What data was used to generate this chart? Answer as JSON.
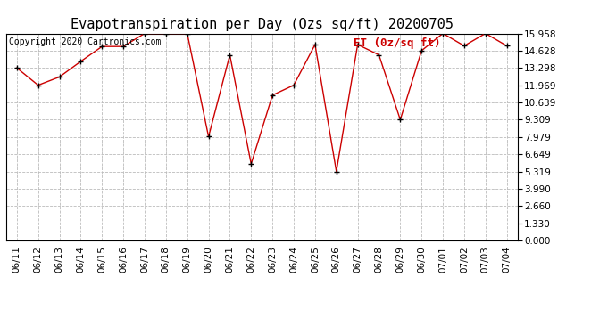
{
  "title": "Evapotranspiration per Day (Ozs sq/ft) 20200705",
  "copyright": "Copyright 2020 Cartronics.com",
  "legend_label": "ET (0z/sq ft)",
  "dates": [
    "06/11",
    "06/12",
    "06/13",
    "06/14",
    "06/15",
    "06/16",
    "06/17",
    "06/18",
    "06/19",
    "06/20",
    "06/21",
    "06/22",
    "06/23",
    "06/24",
    "06/25",
    "06/26",
    "06/27",
    "06/28",
    "06/29",
    "06/30",
    "07/01",
    "07/02",
    "07/03",
    "07/04"
  ],
  "values": [
    13.3,
    11.969,
    12.6,
    13.8,
    14.95,
    14.95,
    15.958,
    15.958,
    15.958,
    8.0,
    14.3,
    5.9,
    11.2,
    11.969,
    15.1,
    5.319,
    15.1,
    14.3,
    9.309,
    14.628,
    15.958,
    15.0,
    15.958,
    15.0
  ],
  "yticks": [
    0.0,
    1.33,
    2.66,
    3.99,
    5.319,
    6.649,
    7.979,
    9.309,
    10.639,
    11.969,
    13.298,
    14.628,
    15.958
  ],
  "ylim": [
    0,
    15.958
  ],
  "line_color": "#cc0000",
  "marker_color": "#000000",
  "grid_color": "#bbbbbb",
  "bg_color": "#ffffff",
  "title_color": "#000000",
  "copyright_color": "#000000",
  "legend_color": "#cc0000",
  "title_fontsize": 11,
  "copyright_fontsize": 7,
  "legend_fontsize": 9,
  "tick_fontsize": 7.5,
  "ytick_fontsize": 7.5
}
